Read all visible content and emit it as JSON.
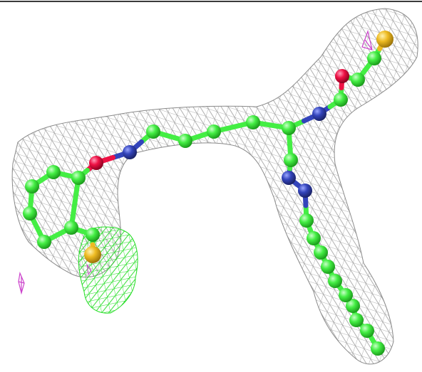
{
  "figure": {
    "subject": "ligand-in-electron-density",
    "colors": {
      "background": "#ffffff",
      "frame": "#3a3a3a",
      "density_mesh": "#9a9a9a",
      "difference_positive": "#22dd22",
      "difference_negative": "#cc44cc",
      "carbon": "#44ee44",
      "nitrogen": "#3344bb",
      "oxygen": "#ee1144",
      "sulfur": "#eebb22"
    }
  }
}
